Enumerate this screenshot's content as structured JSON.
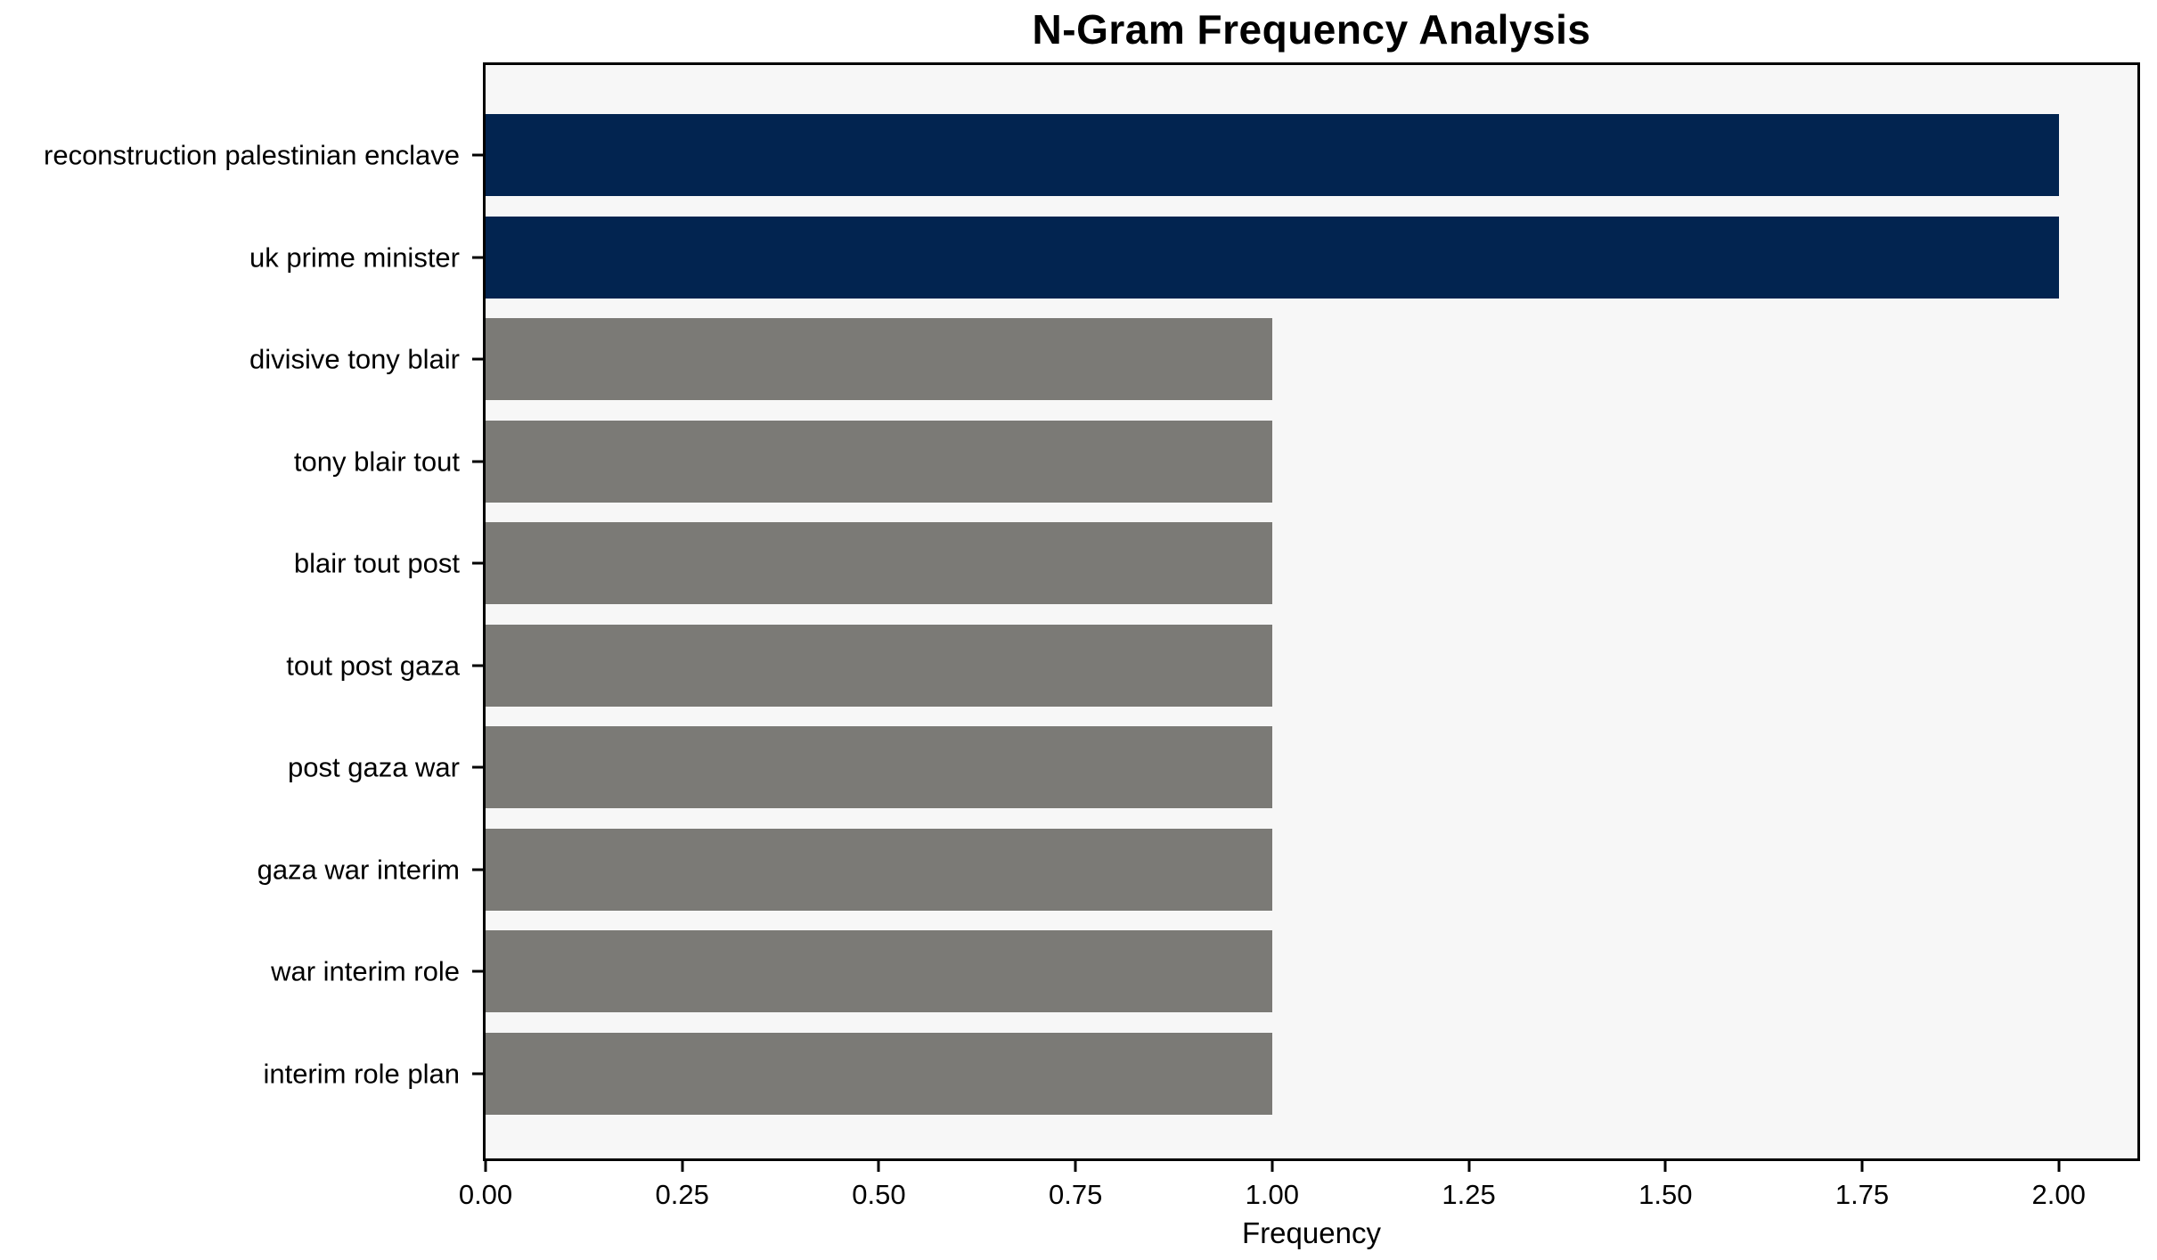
{
  "chart_data": {
    "type": "bar",
    "orientation": "horizontal",
    "title": "N-Gram Frequency Analysis",
    "xlabel": "Frequency",
    "ylabel": "",
    "categories": [
      "reconstruction palestinian enclave",
      "uk prime minister",
      "divisive tony blair",
      "tony blair tout",
      "blair tout post",
      "tout post gaza",
      "post gaza war",
      "gaza war interim",
      "war interim role",
      "interim role plan"
    ],
    "values": [
      2,
      2,
      1,
      1,
      1,
      1,
      1,
      1,
      1,
      1
    ],
    "bar_colors": [
      "#022450",
      "#022450",
      "#7b7a76",
      "#7b7a76",
      "#7b7a76",
      "#7b7a76",
      "#7b7a76",
      "#7b7a76",
      "#7b7a76",
      "#7b7a76"
    ],
    "xticks": [
      "0.00",
      "0.25",
      "0.50",
      "0.75",
      "1.00",
      "1.25",
      "1.50",
      "1.75",
      "2.00"
    ],
    "xtick_values": [
      0,
      0.25,
      0.5,
      0.75,
      1.0,
      1.25,
      1.5,
      1.75,
      2.0
    ],
    "xlim": [
      0,
      2.1
    ],
    "grid": false,
    "legend": null,
    "colors": {
      "highlight": "#022450",
      "default_bar": "#7b7a76",
      "plot_background": "#f7f7f7",
      "figure_background": "#ffffff",
      "spine": "#000000",
      "text": "#000000"
    }
  }
}
